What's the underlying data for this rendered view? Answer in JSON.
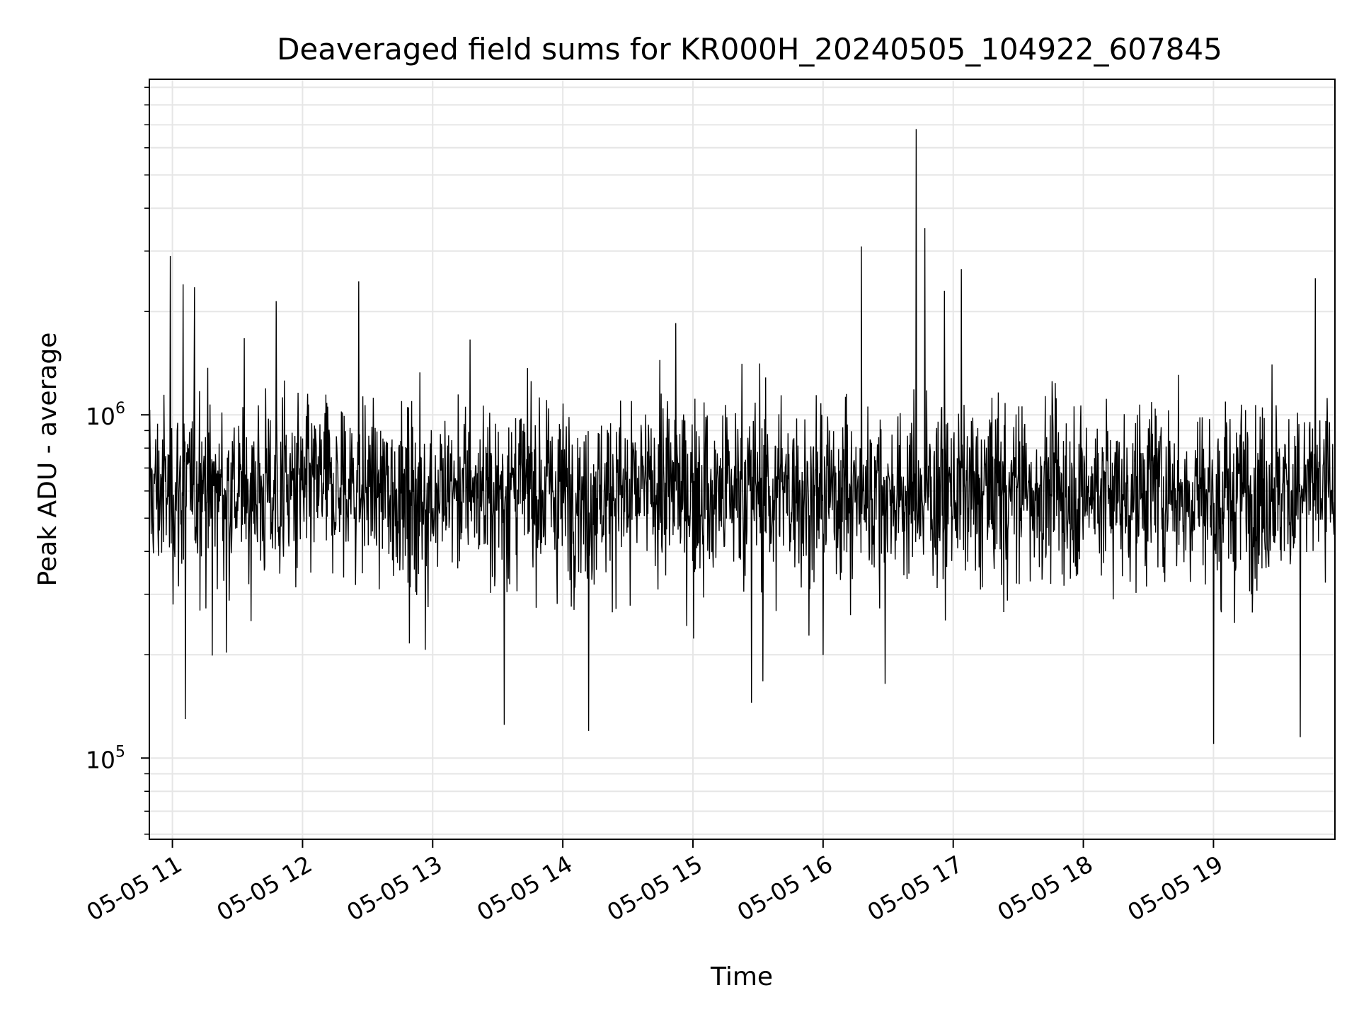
{
  "chart_data": {
    "type": "line",
    "title": "Deaveraged field sums for KR000H_20240505_104922_607845",
    "xlabel": "Time",
    "ylabel": "Peak ADU - average",
    "x_axis": {
      "type": "time",
      "range": [
        "2024-05-05 10:49:22",
        "2024-05-05 19:56:00"
      ],
      "ticks": [
        {
          "value": "2024-05-05 11:00",
          "label": "05-05 11"
        },
        {
          "value": "2024-05-05 12:00",
          "label": "05-05 12"
        },
        {
          "value": "2024-05-05 13:00",
          "label": "05-05 13"
        },
        {
          "value": "2024-05-05 14:00",
          "label": "05-05 14"
        },
        {
          "value": "2024-05-05 15:00",
          "label": "05-05 15"
        },
        {
          "value": "2024-05-05 16:00",
          "label": "05-05 16"
        },
        {
          "value": "2024-05-05 17:00",
          "label": "05-05 17"
        },
        {
          "value": "2024-05-05 18:00",
          "label": "05-05 18"
        },
        {
          "value": "2024-05-05 19:00",
          "label": "05-05 19"
        }
      ]
    },
    "y_axis": {
      "scale": "log",
      "range": [
        58000,
        9500000
      ],
      "ticks": [
        {
          "value": 100000,
          "base": "10",
          "exponent": "5"
        },
        {
          "value": 1000000,
          "base": "10",
          "exponent": "6"
        }
      ]
    },
    "grid": true,
    "line_color": "#000000",
    "series_summary": {
      "typical_range": [
        250000,
        1200000
      ],
      "median_approx": 600000,
      "notable_points": [
        {
          "time": "2024-05-05 10:59",
          "value": 2900000
        },
        {
          "time": "2024-05-05 11:05",
          "value": 2400000
        },
        {
          "time": "2024-05-05 11:06",
          "value": 130000
        },
        {
          "time": "2024-05-05 12:26",
          "value": 2450000
        },
        {
          "time": "2024-05-05 13:33",
          "value": 125000
        },
        {
          "time": "2024-05-05 14:12",
          "value": 120000
        },
        {
          "time": "2024-05-05 14:52",
          "value": 1850000
        },
        {
          "time": "2024-05-05 15:27",
          "value": 145000
        },
        {
          "time": "2024-05-05 16:43",
          "value": 6800000
        },
        {
          "time": "2024-05-05 16:47",
          "value": 3500000
        },
        {
          "time": "2024-05-05 19:00",
          "value": 110000
        },
        {
          "time": "2024-05-05 19:40",
          "value": 115000
        },
        {
          "time": "2024-05-05 19:47",
          "value": 2500000
        }
      ]
    }
  }
}
